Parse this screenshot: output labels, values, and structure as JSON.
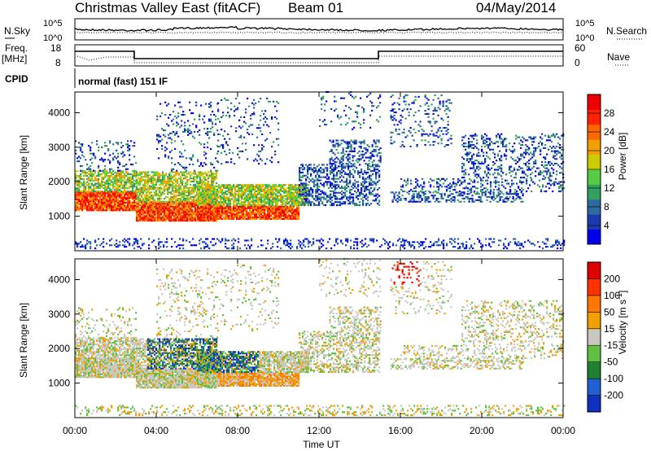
{
  "header": {
    "title": "Christmas Valley East (fitACF)",
    "beam": "Beam 01",
    "date": "04/May/2014"
  },
  "strips": {
    "nsky_label": "N.Sky",
    "nsky_ticks": [
      "10^5",
      "10^0"
    ],
    "nsearch_label": "N.Search",
    "freq_label_1": "Freq.",
    "freq_label_2": "[MHz]",
    "freq_ticks": [
      "18",
      "8"
    ],
    "nave_label": "Nave",
    "nave_ticks": [
      "60",
      "0"
    ],
    "cpid_label": "CPID",
    "cpid_mode": "normal (fast) 151 IF"
  },
  "chart_data": [
    {
      "type": "heatmap",
      "title": "",
      "xlabel": "",
      "ylabel": "Slant Range [km]",
      "y_ticks": [
        "1000",
        "2000",
        "3000",
        "4000"
      ],
      "ylim": [
        0,
        4600
      ],
      "x_range_hours": [
        0,
        24
      ],
      "colorbar": {
        "label": "Power [dB]",
        "ticks": [
          "4",
          "8",
          "12",
          "16",
          "20",
          "24",
          "28"
        ],
        "colors": [
          "#0000ee",
          "#1a3bb0",
          "#2c6aa0",
          "#33a060",
          "#55cc44",
          "#cccc00",
          "#f0a000",
          "#ff6600",
          "#ff2200",
          "#ee0000"
        ]
      },
      "color_scale": {
        "label": "Power [dB]",
        "range": [
          0,
          30
        ],
        "colors": [
          "#0000ee",
          "#1a3bb0",
          "#2c6aa0",
          "#33a060",
          "#55cc44",
          "#cccc00",
          "#f0a000",
          "#ff6600",
          "#ff2200",
          "#ee0000"
        ]
      }
    },
    {
      "type": "heatmap",
      "title": "",
      "xlabel": "Time UT",
      "ylabel": "Slant Range [km]",
      "y_ticks": [
        "1000",
        "2000",
        "3000",
        "4000"
      ],
      "ylim": [
        0,
        4600
      ],
      "x_range_hours": [
        0,
        24
      ],
      "x_ticks": [
        "00:00",
        "04:00",
        "08:00",
        "12:00",
        "16:00",
        "20:00",
        "00:00"
      ],
      "colorbar": {
        "label": "Velocity [m s^-1]",
        "ticks": [
          "200",
          "100",
          "50",
          "15",
          "-15",
          "-50",
          "-100",
          "-200"
        ],
        "colors": [
          "#1030c0",
          "#2060d0",
          "#208030",
          "#60c040",
          "#c8c8c0",
          "#f0a000",
          "#ff7700",
          "#ff3300",
          "#e00000"
        ]
      },
      "color_scale": {
        "label": "Velocity [m s^-1]",
        "range": [
          -250,
          250
        ],
        "colors": [
          "#e00000",
          "#ff3300",
          "#ff7700",
          "#f0a000",
          "#c8c8c0",
          "#60c040",
          "#208030",
          "#2060d0",
          "#1030c0"
        ]
      }
    }
  ]
}
